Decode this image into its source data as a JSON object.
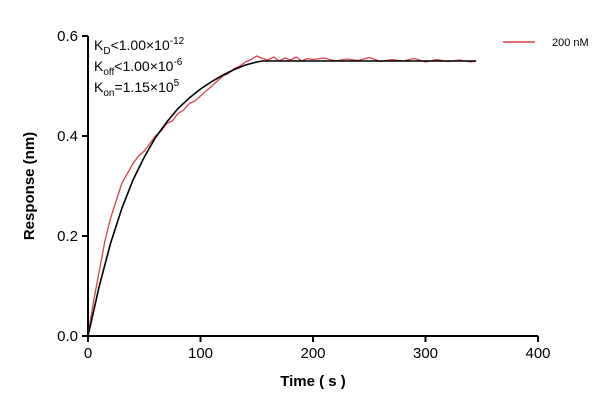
{
  "chart_data": {
    "type": "line",
    "title": "",
    "xlabel": "Time ( s )",
    "ylabel": "Response (nm)",
    "xlim": [
      0,
      400
    ],
    "ylim": [
      0,
      0.6
    ],
    "xticks": [
      0,
      100,
      200,
      300,
      400
    ],
    "yticks": [
      0.0,
      0.2,
      0.4,
      0.6
    ],
    "ytick_labels": [
      "0.0",
      "0.2",
      "0.4",
      "0.6"
    ],
    "grid": false,
    "legend_placement": "top-right",
    "annotations": [
      {
        "k": "K",
        "sub": "D",
        "rel": "<1.00×10",
        "sup": "-12"
      },
      {
        "k": "K",
        "sub": "off",
        "rel": "<1.00×10",
        "sup": "-6"
      },
      {
        "k": "K",
        "sub": "on",
        "rel": "=1.15×10",
        "sup": "5"
      }
    ],
    "series": [
      {
        "name": "200 nM",
        "color": "#d9414b",
        "x": [
          0,
          5,
          10,
          15,
          20,
          25,
          30,
          35,
          40,
          45,
          50,
          55,
          60,
          65,
          70,
          75,
          80,
          85,
          90,
          95,
          100,
          105,
          110,
          115,
          120,
          125,
          130,
          135,
          140,
          145,
          150,
          155,
          160,
          165,
          170,
          175,
          180,
          185,
          190,
          195,
          200,
          210,
          220,
          230,
          240,
          250,
          260,
          270,
          280,
          290,
          300,
          310,
          320,
          330,
          340,
          345
        ],
        "y": [
          0,
          0.07,
          0.13,
          0.19,
          0.235,
          0.27,
          0.305,
          0.325,
          0.345,
          0.36,
          0.37,
          0.385,
          0.4,
          0.41,
          0.425,
          0.43,
          0.445,
          0.452,
          0.465,
          0.47,
          0.48,
          0.49,
          0.5,
          0.51,
          0.52,
          0.525,
          0.535,
          0.54,
          0.548,
          0.553,
          0.56,
          0.555,
          0.552,
          0.558,
          0.55,
          0.556,
          0.552,
          0.558,
          0.55,
          0.555,
          0.553,
          0.556,
          0.55,
          0.554,
          0.551,
          0.557,
          0.549,
          0.553,
          0.55,
          0.555,
          0.548,
          0.553,
          0.549,
          0.552,
          0.548,
          0.55
        ]
      },
      {
        "name": "",
        "color": "#000000",
        "x": [
          0,
          10,
          20,
          30,
          40,
          50,
          60,
          70,
          80,
          90,
          100,
          110,
          120,
          130,
          140,
          150,
          155,
          345
        ],
        "y": [
          0,
          0.1,
          0.185,
          0.255,
          0.312,
          0.358,
          0.397,
          0.428,
          0.455,
          0.476,
          0.494,
          0.509,
          0.522,
          0.533,
          0.542,
          0.548,
          0.55,
          0.55
        ]
      }
    ]
  }
}
